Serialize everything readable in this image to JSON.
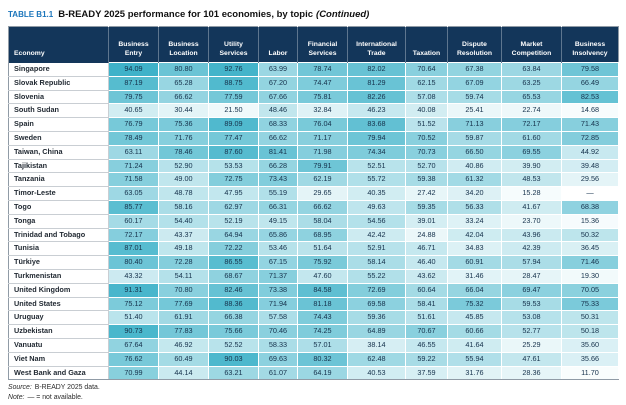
{
  "title": {
    "table_label": "TABLE B1.1",
    "text": "B-READY 2025 performance for 101 economies, by topic",
    "continued": "(Continued)"
  },
  "chart_data": {
    "type": "table",
    "title": "B-READY 2025 performance for 101 economies, by topic (Continued)",
    "columns": [
      "Economy",
      "Business Entry",
      "Business Location",
      "Utility Services",
      "Labor",
      "Financial Services",
      "International Trade",
      "Taxation",
      "Dispute Resolution",
      "Market Competition",
      "Business Insolvency"
    ],
    "rows": [
      {
        "economy": "Singapore",
        "values": [
          "94.09",
          "80.80",
          "92.76",
          "63.99",
          "78.74",
          "82.02",
          "70.64",
          "67.38",
          "63.84",
          "79.58"
        ]
      },
      {
        "economy": "Slovak Republic",
        "values": [
          "87.19",
          "65.28",
          "88.75",
          "67.20",
          "74.47",
          "81.29",
          "62.15",
          "67.09",
          "63.25",
          "66.49"
        ]
      },
      {
        "economy": "Slovenia",
        "values": [
          "79.75",
          "66.62",
          "77.59",
          "67.66",
          "75.81",
          "82.26",
          "57.08",
          "59.74",
          "65.53",
          "82.53"
        ]
      },
      {
        "economy": "South Sudan",
        "values": [
          "40.65",
          "30.44",
          "21.50",
          "48.46",
          "32.84",
          "46.23",
          "40.08",
          "25.41",
          "22.74",
          "14.68"
        ]
      },
      {
        "economy": "Spain",
        "values": [
          "76.79",
          "75.36",
          "89.09",
          "68.33",
          "76.04",
          "83.68",
          "51.52",
          "71.13",
          "72.17",
          "71.43"
        ]
      },
      {
        "economy": "Sweden",
        "values": [
          "78.49",
          "71.76",
          "77.47",
          "66.62",
          "71.17",
          "79.94",
          "70.52",
          "59.87",
          "61.60",
          "72.85"
        ]
      },
      {
        "economy": "Taiwan, China",
        "values": [
          "63.11",
          "78.46",
          "87.60",
          "81.41",
          "71.98",
          "74.34",
          "70.73",
          "66.50",
          "69.55",
          "44.92"
        ]
      },
      {
        "economy": "Tajikistan",
        "values": [
          "71.24",
          "52.90",
          "53.53",
          "66.28",
          "79.91",
          "52.51",
          "52.70",
          "40.86",
          "39.90",
          "39.48"
        ]
      },
      {
        "economy": "Tanzania",
        "values": [
          "71.58",
          "49.00",
          "72.75",
          "73.43",
          "62.19",
          "55.72",
          "59.38",
          "61.32",
          "48.53",
          "29.56"
        ]
      },
      {
        "economy": "Timor-Leste",
        "values": [
          "63.05",
          "48.78",
          "47.95",
          "55.19",
          "29.65",
          "40.35",
          "27.42",
          "34.20",
          "15.28",
          null
        ]
      },
      {
        "economy": "Togo",
        "values": [
          "85.77",
          "58.16",
          "62.97",
          "66.31",
          "66.62",
          "49.63",
          "59.35",
          "56.33",
          "41.67",
          "68.38"
        ]
      },
      {
        "economy": "Tonga",
        "values": [
          "60.17",
          "54.40",
          "52.19",
          "49.15",
          "58.04",
          "54.56",
          "39.01",
          "33.24",
          "23.70",
          "15.36"
        ]
      },
      {
        "economy": "Trinidad and Tobago",
        "values": [
          "72.17",
          "43.37",
          "64.94",
          "65.86",
          "68.95",
          "42.42",
          "24.88",
          "42.04",
          "43.96",
          "50.32"
        ]
      },
      {
        "economy": "Tunisia",
        "values": [
          "87.01",
          "49.18",
          "72.22",
          "53.46",
          "51.64",
          "52.91",
          "46.71",
          "34.83",
          "42.39",
          "36.45"
        ]
      },
      {
        "economy": "Türkiye",
        "values": [
          "80.40",
          "72.28",
          "86.55",
          "67.15",
          "75.92",
          "58.14",
          "46.40",
          "60.91",
          "57.94",
          "71.46"
        ]
      },
      {
        "economy": "Turkmenistan",
        "values": [
          "43.32",
          "54.11",
          "68.67",
          "71.37",
          "47.60",
          "55.22",
          "43.62",
          "31.46",
          "28.47",
          "19.30"
        ]
      },
      {
        "economy": "United Kingdom",
        "values": [
          "91.31",
          "70.80",
          "82.46",
          "73.38",
          "84.58",
          "72.69",
          "60.64",
          "66.04",
          "69.47",
          "70.05"
        ]
      },
      {
        "economy": "United States",
        "values": [
          "75.12",
          "77.69",
          "88.36",
          "71.94",
          "81.18",
          "69.58",
          "58.41",
          "75.32",
          "59.53",
          "75.33"
        ]
      },
      {
        "economy": "Uruguay",
        "values": [
          "51.40",
          "61.91",
          "66.38",
          "57.58",
          "74.43",
          "59.36",
          "51.61",
          "45.85",
          "53.08",
          "50.31"
        ]
      },
      {
        "economy": "Uzbekistan",
        "values": [
          "90.73",
          "77.83",
          "75.66",
          "70.46",
          "74.25",
          "64.89",
          "70.67",
          "60.66",
          "52.77",
          "50.18"
        ]
      },
      {
        "economy": "Vanuatu",
        "values": [
          "67.64",
          "46.92",
          "52.52",
          "58.33",
          "57.01",
          "38.14",
          "46.55",
          "41.64",
          "25.29",
          "35.60"
        ]
      },
      {
        "economy": "Viet Nam",
        "values": [
          "76.62",
          "60.49",
          "90.03",
          "69.63",
          "80.32",
          "62.48",
          "59.22",
          "55.94",
          "47.61",
          "35.66"
        ]
      },
      {
        "economy": "West Bank and Gaza",
        "values": [
          "70.99",
          "44.14",
          "63.21",
          "61.07",
          "64.19",
          "40.53",
          "37.59",
          "31.76",
          "28.36",
          "11.70"
        ]
      }
    ],
    "not_available_symbol": "—",
    "heatmap": {
      "low_color": "#ffffff",
      "high_color": "#2aaac3",
      "gamma": 1.7,
      "domain": [
        0,
        100
      ]
    },
    "header_background": "#13365a",
    "title_label_color": "#1b75bb"
  },
  "footer": {
    "source_label": "Source:",
    "source_text": "B-READY 2025 data.",
    "note_label": "Note:",
    "note_text": "— = not available."
  }
}
